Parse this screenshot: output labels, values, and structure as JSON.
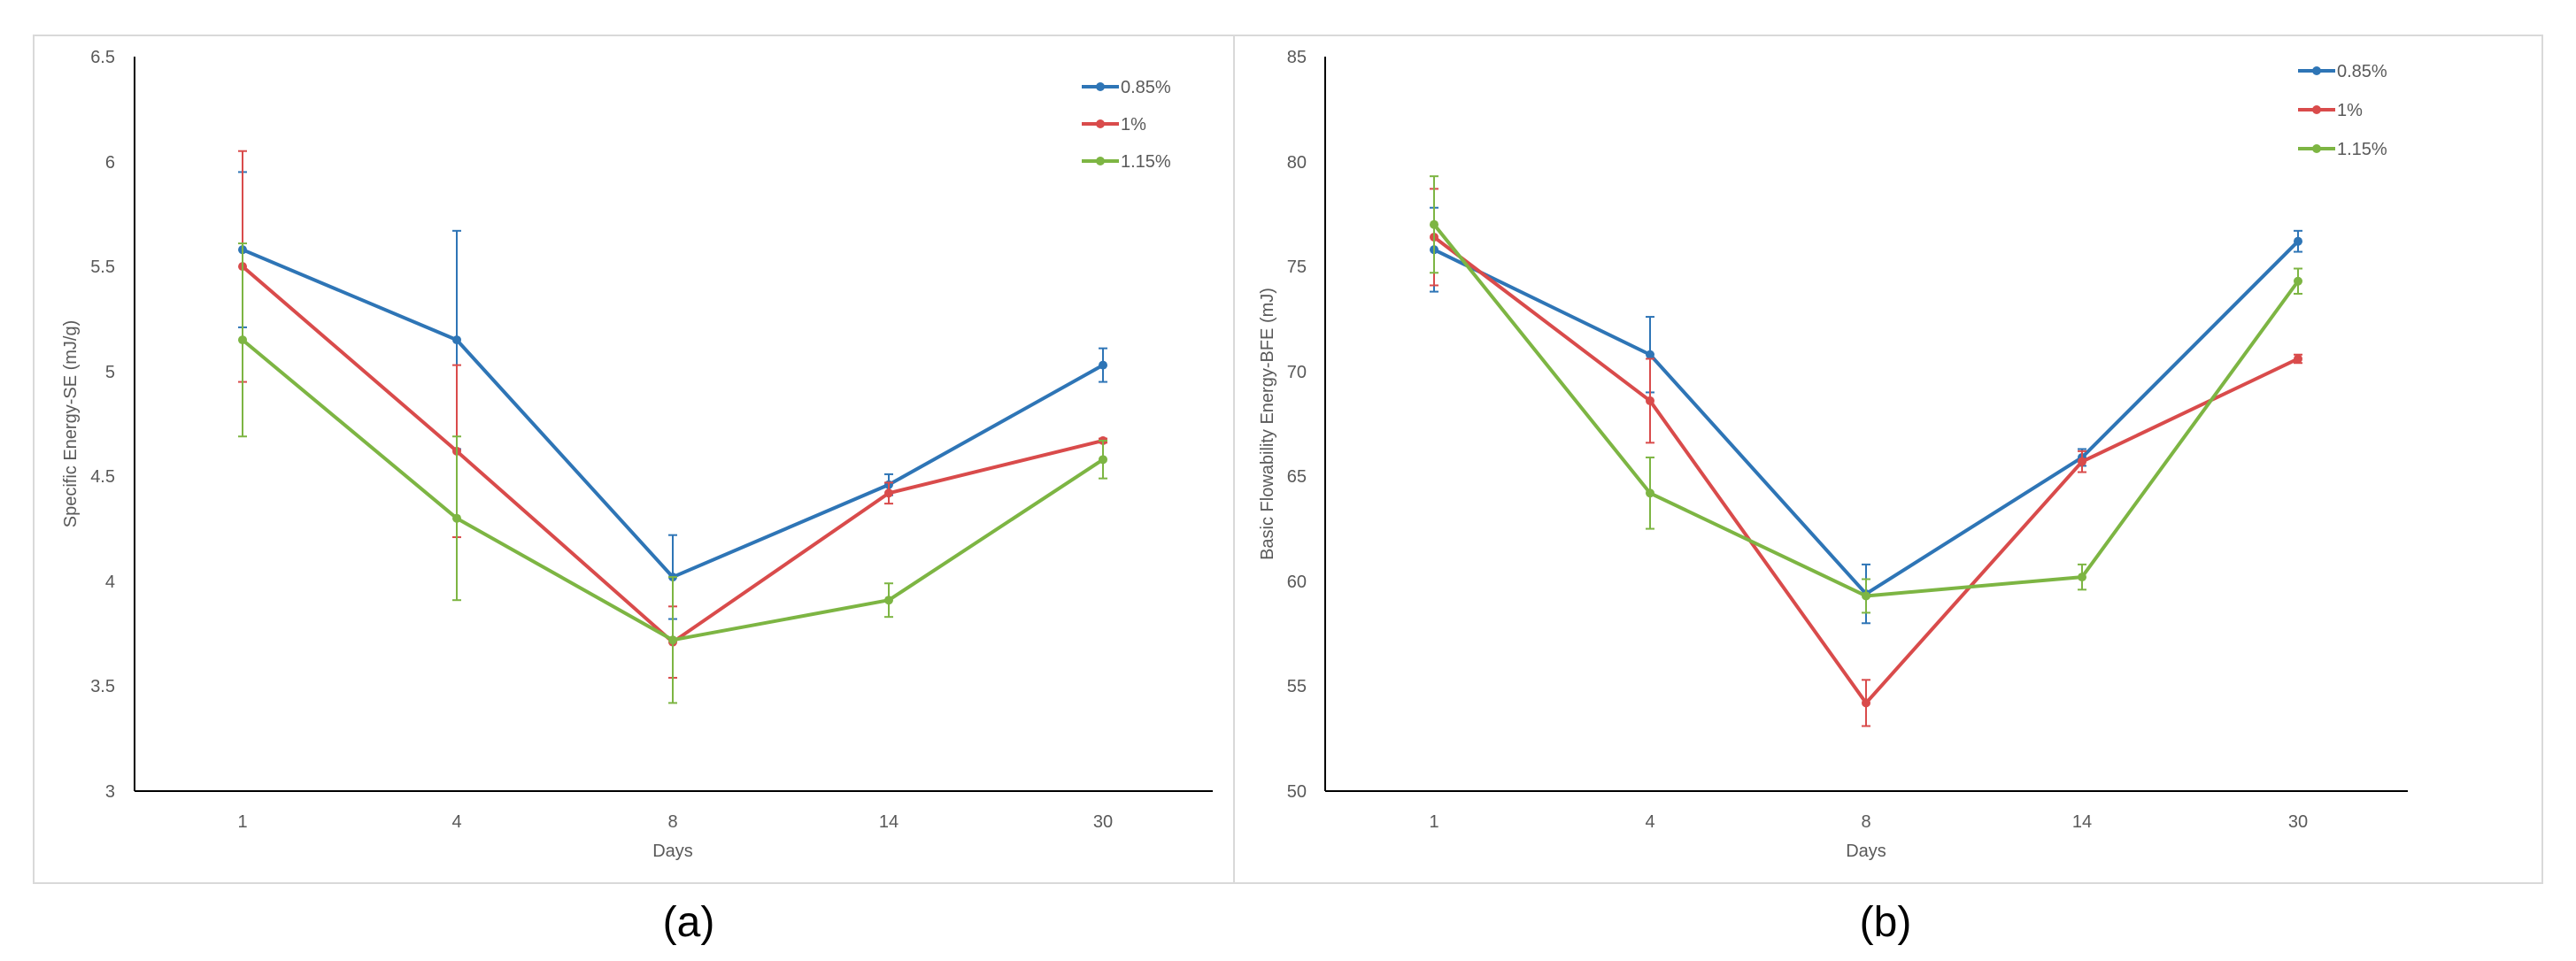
{
  "chart_data": [
    {
      "type": "line",
      "panel_label": "(a)",
      "title": "",
      "xlabel": "Days",
      "ylabel": "Specific Energy-SE (mJ/g)",
      "categories": [
        "1",
        "4",
        "8",
        "14",
        "30"
      ],
      "ylim": [
        3,
        6.5
      ],
      "yticks": [
        "3",
        "3.5",
        "4",
        "4.5",
        "5",
        "5.5",
        "6",
        "6.5"
      ],
      "ytick_values": [
        3,
        3.5,
        4,
        4.5,
        5,
        5.5,
        6,
        6.5
      ],
      "legend_position": "top-right",
      "series": [
        {
          "name": "0.85%",
          "color": "#2E75B6",
          "values": [
            5.58,
            5.15,
            4.02,
            4.46,
            5.03
          ],
          "errors": [
            0.37,
            0.52,
            0.2,
            0.05,
            0.08
          ]
        },
        {
          "name": "1%",
          "color": "#D94B4B",
          "values": [
            5.5,
            4.62,
            3.71,
            4.42,
            4.67
          ],
          "errors": [
            0.55,
            0.41,
            0.17,
            0.05,
            0.01
          ]
        },
        {
          "name": "1.15%",
          "color": "#7DB543",
          "values": [
            5.15,
            4.3,
            3.72,
            3.91,
            4.58
          ],
          "errors": [
            0.46,
            0.39,
            0.3,
            0.08,
            0.09
          ]
        }
      ]
    },
    {
      "type": "line",
      "panel_label": "(b)",
      "title": "",
      "xlabel": "Days",
      "ylabel": "Basic Flowability Energy-BFE (mJ)",
      "categories": [
        "1",
        "4",
        "8",
        "14",
        "30"
      ],
      "ylim": [
        50,
        85
      ],
      "yticks": [
        "50",
        "55",
        "60",
        "65",
        "70",
        "75",
        "80",
        "85"
      ],
      "ytick_values": [
        50,
        55,
        60,
        65,
        70,
        75,
        80,
        85
      ],
      "legend_position": "top-right",
      "series": [
        {
          "name": "0.85%",
          "color": "#2E75B6",
          "values": [
            75.8,
            70.8,
            59.4,
            65.9,
            76.2
          ],
          "errors": [
            2.0,
            1.8,
            1.4,
            0.4,
            0.5
          ]
        },
        {
          "name": "1%",
          "color": "#D94B4B",
          "values": [
            76.4,
            68.6,
            54.2,
            65.7,
            70.6
          ],
          "errors": [
            2.3,
            2.0,
            1.1,
            0.5,
            0.2
          ]
        },
        {
          "name": "1.15%",
          "color": "#7DB543",
          "values": [
            77.0,
            64.2,
            59.3,
            60.2,
            74.3
          ],
          "errors": [
            2.3,
            1.7,
            0.8,
            0.6,
            0.6
          ]
        }
      ]
    }
  ]
}
